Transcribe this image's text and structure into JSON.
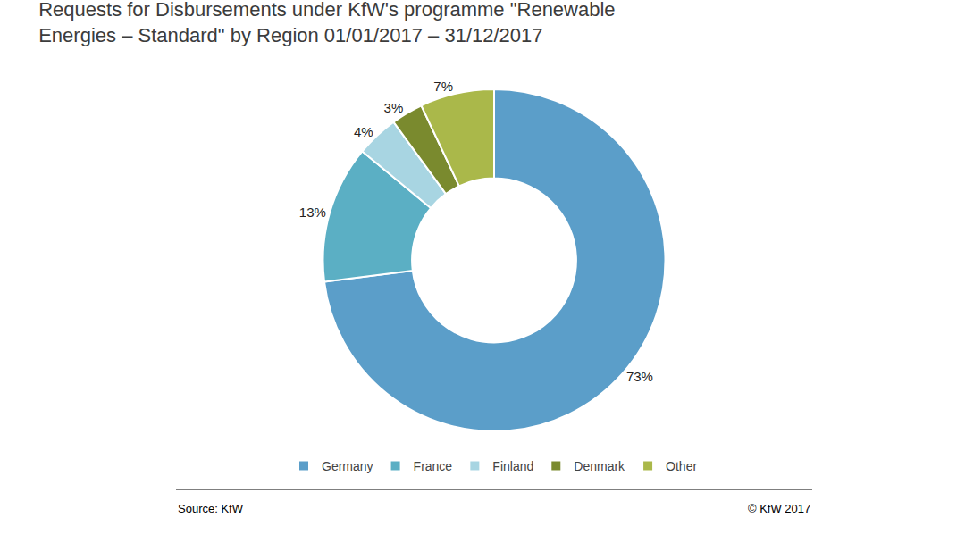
{
  "chart_data": {
    "type": "donut",
    "title": "Requests for Disbursements under KfW's programme \"Renewable\nEnergies – Standard\" by Region 01/01/2017 – 31/12/2017",
    "categories": [
      "Germany",
      "France",
      "Finland",
      "Denmark",
      "Other"
    ],
    "values": [
      73,
      13,
      4,
      3,
      7
    ],
    "value_labels": [
      "73%",
      "13%",
      "4%",
      "3%",
      "7%"
    ],
    "colors": [
      "#5b9ec9",
      "#5bafc4",
      "#a8d5e2",
      "#7a8a2e",
      "#aab84a"
    ],
    "data_labels": true,
    "legend": "bottom",
    "annotations": [
      "Source: KfW",
      "© KfW 2017"
    ]
  }
}
